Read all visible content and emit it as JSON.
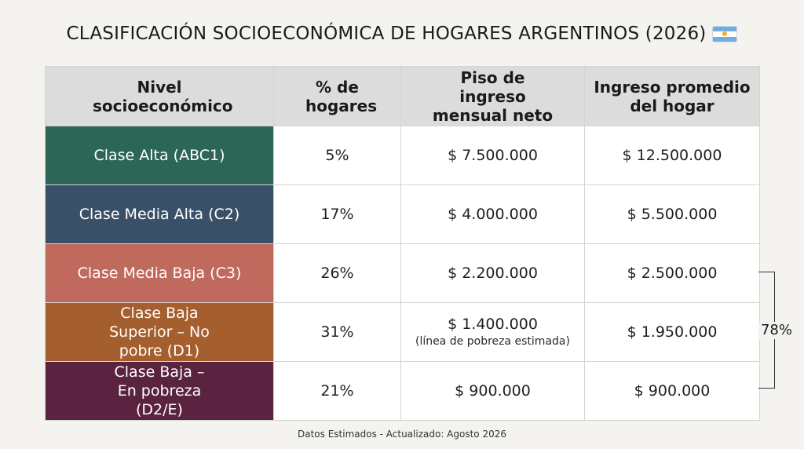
{
  "title": "CLASIFICACIÓN SOCIOECONÓMICA DE HOGARES ARGENTINOS (2026)",
  "flag_icon": "argentina-flag-icon",
  "headers": {
    "level": "Nivel socioeconómico",
    "pct": "% de hogares",
    "floor": "Piso de ingreso mensual neto",
    "avg": "Ingreso promedio del hogar"
  },
  "rows": [
    {
      "level": "Clase Alta (ABC1)",
      "pct": "5%",
      "floor": "$ 7.500.000",
      "floor_note": "",
      "avg": "$ 12.500.000",
      "color": "#2b6657"
    },
    {
      "level": "Clase Media Alta (C2)",
      "pct": "17%",
      "floor": "$ 4.000.000",
      "floor_note": "",
      "avg": "$ 5.500.000",
      "color": "#3a5068"
    },
    {
      "level": "Clase Media Baja (C3)",
      "pct": "26%",
      "floor": "$ 2.200.000",
      "floor_note": "",
      "avg": "$ 2.500.000",
      "color": "#c06a5e"
    },
    {
      "level": "Clase Baja Superior – No pobre (D1)",
      "pct": "31%",
      "floor": "$ 1.400.000",
      "floor_note": "(línea de pobreza estimada)",
      "avg": "$ 1.950.000",
      "color": "#a55e2e"
    },
    {
      "level": "Clase Baja – En pobreza (D2/E)",
      "pct": "21%",
      "floor": "$ 900.000",
      "floor_note": "",
      "avg": "$ 900.000",
      "color": "#5a2340"
    }
  ],
  "bracket_label": "78%",
  "footer": "Datos Estimados - Actualizado: Agosto 2026"
}
